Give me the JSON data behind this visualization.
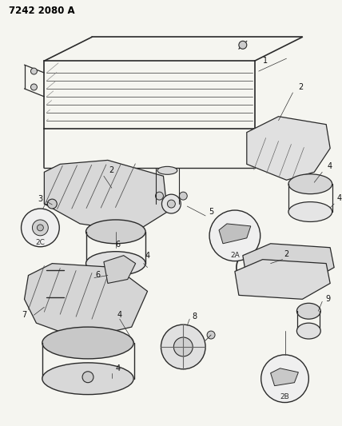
{
  "title": "7242 2080 A",
  "background_color": "#f5f5f0",
  "figsize": [
    4.28,
    5.33
  ],
  "dpi": 100,
  "line_color": "#2a2a2a",
  "title_fontsize": 8.5,
  "label_fontsize": 7
}
